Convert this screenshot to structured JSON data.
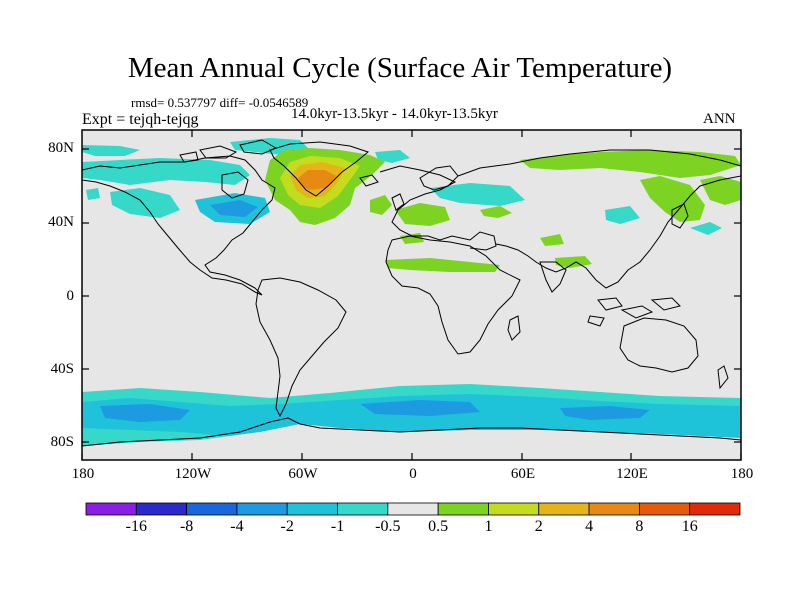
{
  "title": "Mean Annual Cycle (Surface Air Temperature)",
  "stats": "rmsd= 0.537797 diff= -0.0546589",
  "period": "14.0kyr-13.5kyr - 14.0kyr-13.5kyr",
  "expt": "Expt = tejqh-tejqg",
  "season": "ANN",
  "y_ticks": [
    "80N",
    "40N",
    "0",
    "40S",
    "80S"
  ],
  "x_ticks": [
    "180",
    "120W",
    "60W",
    "0",
    "60E",
    "120E",
    "180"
  ],
  "colorbar": {
    "labels": [
      "-16",
      "-8",
      "-4",
      "-2",
      "-1",
      "-0.5",
      "0.5",
      "1",
      "2",
      "4",
      "8",
      "16"
    ],
    "colors": [
      "#8a1ee6",
      "#2a2acc",
      "#1a66dd",
      "#1c9be0",
      "#1ec3d9",
      "#36d9c9",
      "#e6e6e6",
      "#7dd321",
      "#c3dc1e",
      "#e6b418",
      "#e68a14",
      "#e65a0e",
      "#e02a0a"
    ]
  }
}
